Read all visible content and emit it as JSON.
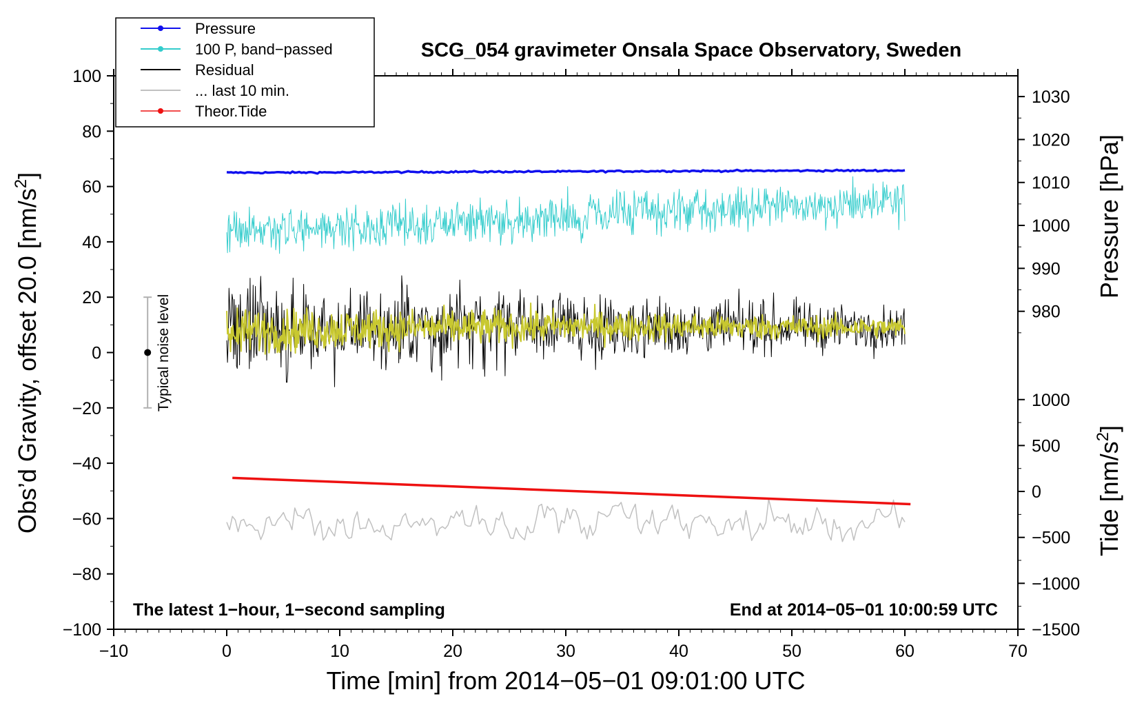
{
  "chart_data": {
    "type": "line",
    "title": "SCG_054 gravimeter Onsala Space Observatory, Sweden",
    "xlabel": "Time [min] from 2014−05−01 09:01:00 UTC",
    "ylabel_left": "Obs’d Gravity, offset 20.0 [nm/s²]",
    "ylabel_left_main": "Obs’d Gravity, offset 20.0 [nm/s",
    "ylabel_right_pressure": "Pressure [hPa]",
    "ylabel_right_tide": "Tide [nm/s²]",
    "ylabel_right_tide_main": "Tide [nm/s",
    "superscript": "2",
    "xlim": [
      -10,
      70
    ],
    "ylim": [
      -100,
      100
    ],
    "x_ticks": [
      -10,
      0,
      10,
      20,
      30,
      40,
      50,
      60,
      70
    ],
    "x_tick_labels": [
      "−10",
      "0",
      "10",
      "20",
      "30",
      "40",
      "50",
      "60",
      "70"
    ],
    "y_ticks": [
      -100,
      -80,
      -60,
      -40,
      -20,
      0,
      20,
      40,
      60,
      80,
      100
    ],
    "y_tick_labels": [
      "−100",
      "−80",
      "−60",
      "−40",
      "−20",
      "0",
      "20",
      "40",
      "60",
      "80",
      "100"
    ],
    "pressure_axis": {
      "ticks": [
        980,
        990,
        1000,
        1010,
        1020,
        1030
      ],
      "tick_labels": [
        "980",
        "990",
        "1000",
        "1010",
        "1020",
        "1030"
      ],
      "map_to_left": [
        [
          980,
          14.9
        ],
        [
          1030,
          92.5
        ]
      ]
    },
    "tide_axis": {
      "ticks": [
        -1500,
        -1000,
        -500,
        0,
        500,
        1000
      ],
      "tick_labels": [
        "−1500",
        "−1000",
        "−500",
        "0",
        "500",
        "1000"
      ],
      "map_to_left": [
        [
          -1500,
          -100
        ],
        [
          1000,
          -17
        ]
      ]
    },
    "annotations": {
      "bottom_left": "The latest 1−hour, 1−second sampling",
      "bottom_right": "End at 2014−05−01 10:00:59 UTC",
      "noise_label": "Typical noise level",
      "noise_bar": {
        "x": -7,
        "center": 0,
        "low": -20,
        "high": 20
      }
    },
    "legend": {
      "placement": "top-left",
      "entries": [
        {
          "name": "Pressure",
          "color": "#1010ee",
          "marker": true
        },
        {
          "name": "100 P, band−passed",
          "color": "#33cccc",
          "marker": true
        },
        {
          "name": "Residual",
          "color": "#000000",
          "marker": false
        },
        {
          "name": "... last 10 min.",
          "color": "#c0c0c0",
          "marker": false
        },
        {
          "name": "Theor.Tide",
          "color": "#ee1111",
          "marker": true
        }
      ]
    },
    "series": [
      {
        "name": "Pressure",
        "color": "#1010ee",
        "kind": "trend",
        "x": [
          0,
          10,
          20,
          30,
          40,
          50,
          60
        ],
        "y": [
          65.0,
          65.1,
          65.3,
          65.4,
          65.6,
          65.7,
          65.8
        ],
        "noise": 0.15,
        "width": 3.5
      },
      {
        "name": "100 P, band−passed",
        "color": "#33cccc",
        "kind": "noise",
        "x": [
          0,
          10,
          20,
          30,
          40,
          50,
          60
        ],
        "y": [
          44,
          45,
          47,
          49,
          51,
          53,
          54
        ],
        "noise": 3.8,
        "spikes": [
          [
            34.5,
            9
          ],
          [
            31.5,
            -8
          ],
          [
            49.0,
            7
          ]
        ],
        "width": 1
      },
      {
        "name": "Residual",
        "color": "#000000",
        "kind": "noise",
        "x": [
          0,
          10,
          20,
          30,
          40,
          50,
          60
        ],
        "y": [
          8,
          8.5,
          9,
          9.5,
          9.3,
          9.2,
          9
        ],
        "noise_start": 8.5,
        "noise_end": 3.5,
        "spikes": [
          [
            5.3,
            20
          ],
          [
            15.5,
            19
          ],
          [
            38.3,
            11
          ],
          [
            47.5,
            9
          ],
          [
            5.3,
            -19
          ]
        ],
        "width": 1
      },
      {
        "name": "Residual smoothed",
        "color": "#c8c830",
        "kind": "noise",
        "x": [
          0,
          10,
          20,
          30,
          40,
          50,
          60
        ],
        "y": [
          7.5,
          8.5,
          9,
          9.5,
          9.3,
          9.2,
          9
        ],
        "noise_start": 4,
        "noise_end": 1.8,
        "width": 2
      },
      {
        "name": "... last 10 min.",
        "color": "#c0c0c0",
        "kind": "noise",
        "x": [
          0,
          10,
          20,
          30,
          40,
          50,
          60
        ],
        "y": [
          -62,
          -62,
          -62,
          -61.5,
          -62,
          -62,
          -62.5
        ],
        "noise": 3.5,
        "spikes": [
          [
            48.0,
            9
          ],
          [
            28.3,
            6
          ]
        ],
        "width": 1.5,
        "smooth_points": 240
      },
      {
        "name": "Theor.Tide",
        "color": "#ee1111",
        "kind": "trend",
        "x": [
          0.5,
          60.5
        ],
        "y": [
          -45.3,
          -54.8
        ],
        "noise": 0,
        "width": 3.5
      }
    ]
  }
}
